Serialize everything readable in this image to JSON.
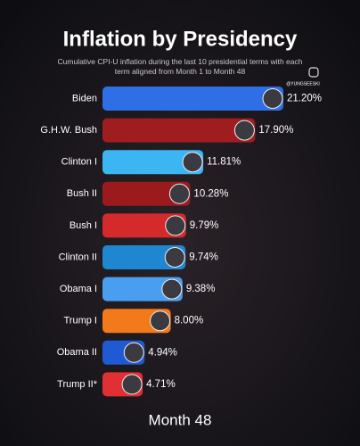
{
  "chart_data": {
    "type": "bar",
    "orientation": "horizontal",
    "title": "Inflation by Presidency",
    "subtitle": "Cumulative CPI-U inflation during the last 10 presidential terms with each term aligned from Month 1 to Month 48",
    "watermark": "@YUNGSEESKI",
    "footer": "Month 48",
    "categories": [
      "Biden",
      "G.H.W. Bush",
      "Clinton I",
      "Bush II",
      "Bush I",
      "Clinton II",
      "Obama I",
      "Trump I",
      "Obama II",
      "Trump II*"
    ],
    "values": [
      21.2,
      17.9,
      11.81,
      10.28,
      9.79,
      9.74,
      9.38,
      8.0,
      4.94,
      4.71
    ],
    "value_labels": [
      "21.20%",
      "17.90%",
      "11.81%",
      "10.28%",
      "9.79%",
      "9.74%",
      "9.38%",
      "8.00%",
      "4.94%",
      "4.71%"
    ],
    "colors": [
      "#2f6fe6",
      "#a01d1f",
      "#3cb6f2",
      "#9b1b1d",
      "#d42a2c",
      "#1f87d2",
      "#4a9ef0",
      "#f27a1a",
      "#2059d4",
      "#e03034"
    ]
  }
}
